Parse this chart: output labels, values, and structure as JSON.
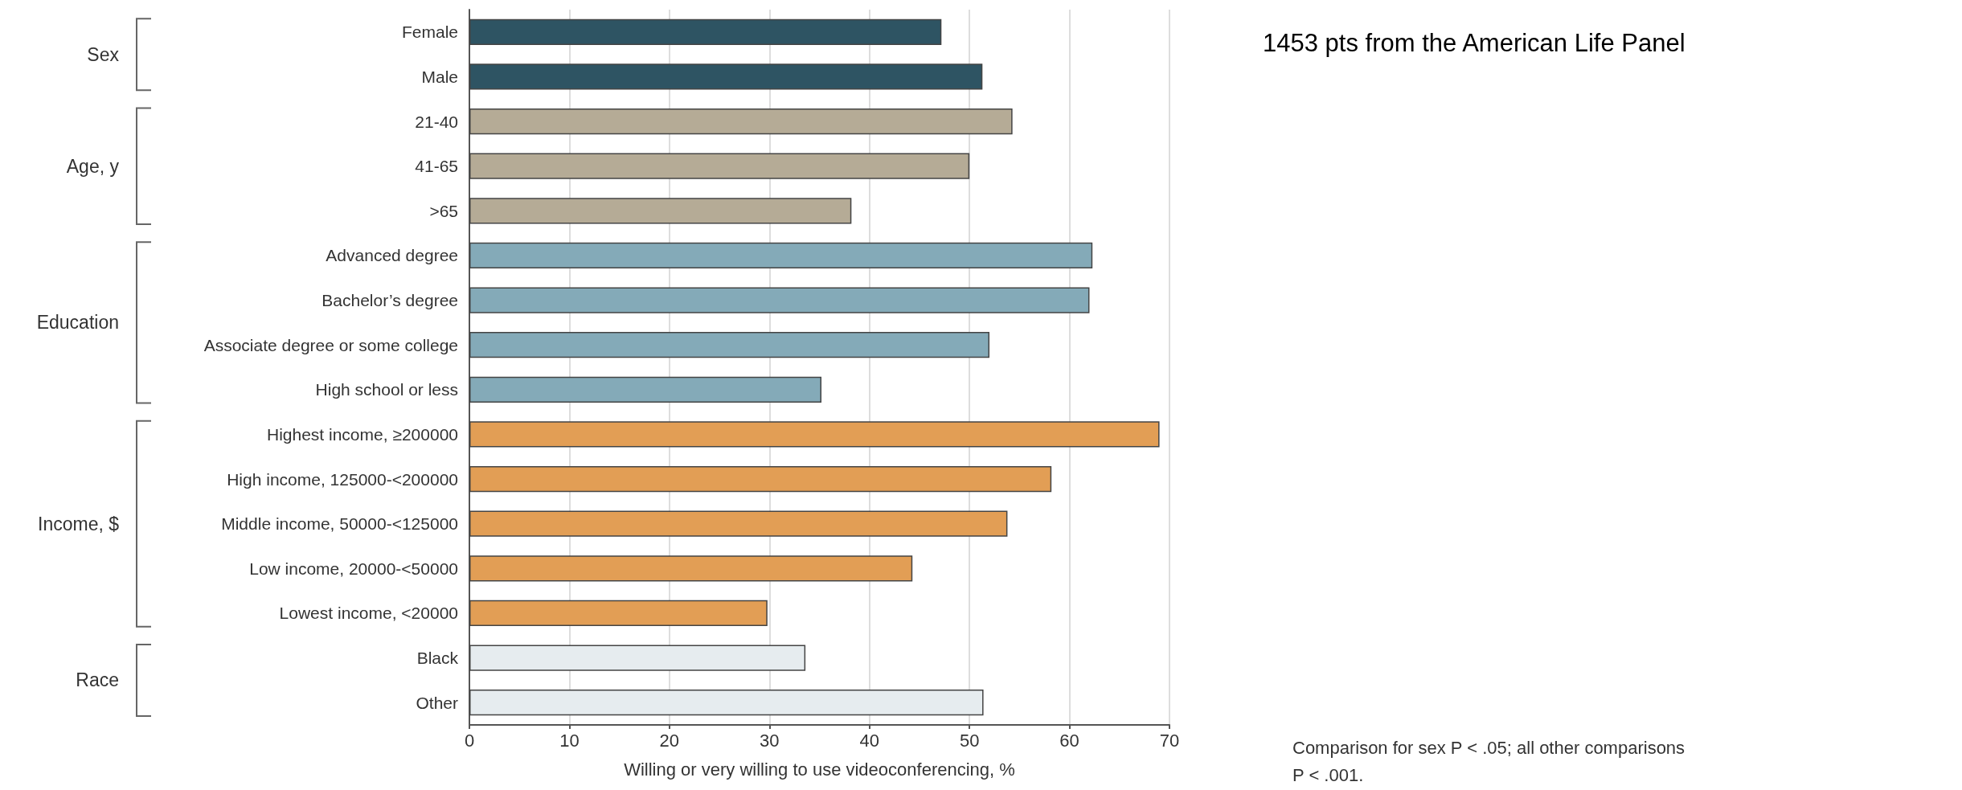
{
  "chart_data": {
    "type": "bar",
    "orientation": "horizontal",
    "categories": [
      "Female",
      "Male",
      "21-40",
      "41-65",
      ">65",
      "Advanced degree",
      "Bachelor’s degree",
      "Associate degree or some college",
      "High school or less",
      "Highest income, ≥200000",
      "High income, 125000-<200000",
      "Middle income, 50000-<125000",
      "Low income, 20000-<50000",
      "Lowest income, <20000",
      "Black",
      "Other"
    ],
    "values": [
      47.2,
      51.3,
      54.3,
      50.0,
      38.2,
      62.3,
      62.0,
      52.0,
      35.2,
      69.0,
      58.2,
      53.8,
      44.3,
      29.8,
      33.6,
      51.4
    ],
    "colors": [
      "#2e5463",
      "#2e5463",
      "#b5ab96",
      "#b5ab96",
      "#b5ab96",
      "#84aab8",
      "#84aab8",
      "#84aab8",
      "#84aab8",
      "#e29e55",
      "#e29e55",
      "#e29e55",
      "#e29e55",
      "#e29e55",
      "#e6ecef",
      "#e6ecef"
    ],
    "xlabel": "Willing or very willing to use videoconferencing, %",
    "xlim": [
      0,
      70
    ],
    "xticks": [
      0,
      10,
      20,
      30,
      40,
      50,
      60,
      70
    ],
    "grid": "x",
    "annotations": [
      "Sex",
      "Age, y",
      "Education",
      "Income, $",
      "Race",
      "Comparison for sex P < .05; all other comparisons P < .001.",
      "1453 pts from the American Life Panel"
    ]
  }
}
